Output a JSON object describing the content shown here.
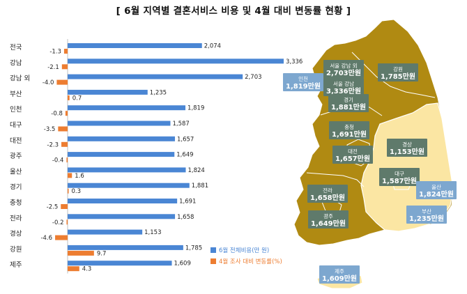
{
  "title": "[ 6월 지역별 결혼서비스 비용 및 4월 대비 변동률 현황 ]",
  "colors": {
    "cost_bar": "#4a86d4",
    "change_bar": "#ed7d31",
    "map_dark": "#b08a12",
    "map_light": "#fbe6a3",
    "label_box": "#5f7a6b",
    "label_box_light": "#7da7cf"
  },
  "chart_data": {
    "type": "bar",
    "orientation": "horizontal",
    "categories": [
      "전국",
      "강남",
      "강남 외",
      "부산",
      "인천",
      "대구",
      "대전",
      "광주",
      "울산",
      "경기",
      "충청",
      "전라",
      "경상",
      "강원",
      "제주"
    ],
    "series": [
      {
        "name": "6월 전체비용(만 원)",
        "values": [
          2074,
          3336,
          2703,
          1235,
          1819,
          1587,
          1657,
          1649,
          1824,
          1881,
          1691,
          1658,
          1153,
          1785,
          1609
        ]
      },
      {
        "name": "4월 조사 대비 변동률(%)",
        "values": [
          -1.3,
          -2.1,
          -4.0,
          0.7,
          -0.8,
          -3.5,
          -2.3,
          -0.4,
          1.6,
          0.3,
          -2.5,
          -0.2,
          -4.6,
          9.7,
          4.3
        ]
      }
    ],
    "value_labels": {
      "cost": [
        "2,074",
        "3,336",
        "2,703",
        "1,235",
        "1,819",
        "1,587",
        "1,657",
        "1,649",
        "1,824",
        "1,881",
        "1,691",
        "1,658",
        "1,153",
        "1,785",
        "1,609"
      ],
      "change": [
        "-1.3",
        "-2.1",
        "-4.0",
        "0.7",
        "-0.8",
        "-3.5",
        "-2.3",
        "-0.4",
        "1.6",
        "0.3",
        "-2.5",
        "-0.2",
        "-4.6",
        "9.7",
        "4.3"
      ]
    },
    "legend_position": "bottom-right",
    "grid": false
  },
  "map": {
    "labels": [
      {
        "region": "서울 강남 외",
        "value": "2,703만원"
      },
      {
        "region": "서울 강남",
        "value": "3,336만원"
      },
      {
        "region": "인천",
        "value": "1,819만원"
      },
      {
        "region": "강원",
        "value": "1,785만원"
      },
      {
        "region": "경기",
        "value": "1,881만원"
      },
      {
        "region": "충청",
        "value": "1,691만원"
      },
      {
        "region": "대전",
        "value": "1,657만원"
      },
      {
        "region": "경상",
        "value": "1,153만원"
      },
      {
        "region": "대구",
        "value": "1,587만원"
      },
      {
        "region": "울산",
        "value": "1,824만원"
      },
      {
        "region": "전라",
        "value": "1,658만원"
      },
      {
        "region": "광주",
        "value": "1,649만원"
      },
      {
        "region": "부산",
        "value": "1,235만원"
      },
      {
        "region": "제주",
        "value": "1,609만원"
      }
    ]
  }
}
